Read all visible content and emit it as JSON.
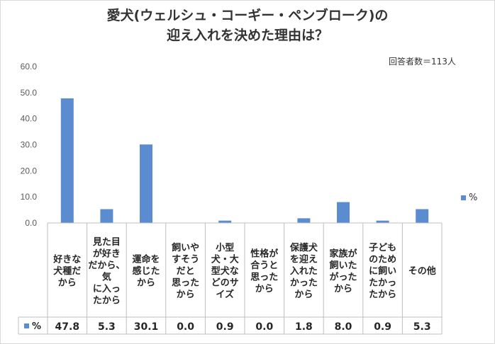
{
  "chart_data": {
    "type": "bar",
    "title": [
      "愛犬(ウェルシュ・コーギー・ペンブローク)の",
      "迎え入れを決めた理由は？"
    ],
    "note": "回答者数＝113人",
    "categories": [
      [
        "好きな",
        "犬種だ",
        "から"
      ],
      [
        "見た目",
        "が好き",
        "だから、",
        "気",
        "に入っ",
        "たから"
      ],
      [
        "運命を",
        "感じた",
        "から"
      ],
      [
        "飼いや",
        "すそう",
        "だと",
        "思った",
        "から"
      ],
      [
        "小型",
        "犬・大",
        "型犬な",
        "どのサ",
        "イズ"
      ],
      [
        "性格が",
        "合うと",
        "思った",
        "から"
      ],
      [
        "保護犬",
        "を迎え",
        "入れた",
        "かった",
        "から"
      ],
      [
        "家族が",
        "飼いた",
        "がった",
        "から"
      ],
      [
        "子ども",
        "のため",
        "に飼い",
        "たかっ",
        "たから"
      ],
      [
        "その他"
      ]
    ],
    "series": [
      {
        "name": "%",
        "values": [
          47.8,
          5.3,
          30.1,
          0.0,
          0.9,
          0.0,
          1.8,
          8.0,
          0.9,
          5.3
        ]
      }
    ],
    "value_labels": [
      "47.8",
      "5.3",
      "30.1",
      "0.0",
      "0.9",
      "0.0",
      "1.8",
      "8.0",
      "0.9",
      "5.3"
    ],
    "yticks": [
      "0.0",
      "10.0",
      "20.0",
      "30.0",
      "40.0",
      "50.0",
      "60.0"
    ],
    "ylim": [
      0,
      60
    ],
    "grid": false,
    "legend_position": "right",
    "bar_color": "#5b8ccf",
    "table_border_color": "#bfbfbf"
  }
}
